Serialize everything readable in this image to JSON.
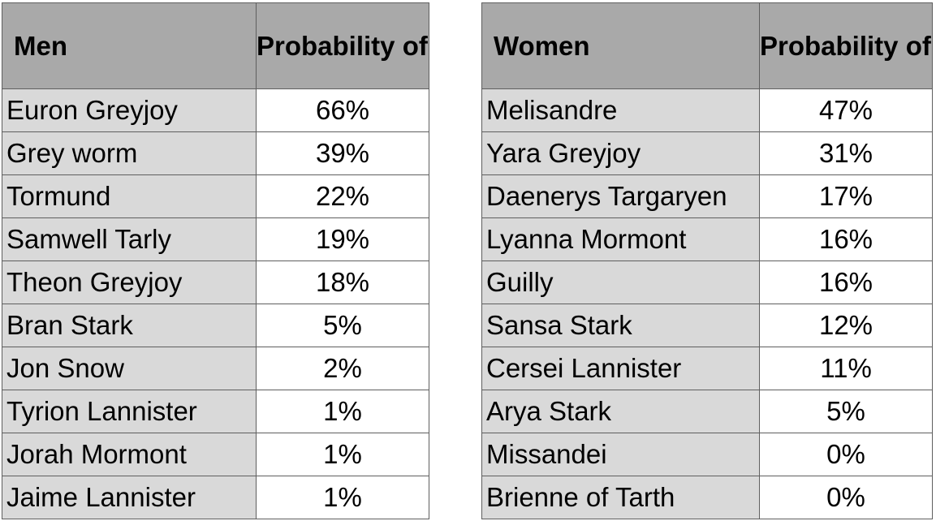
{
  "men_table": {
    "headers": {
      "name": "Men",
      "probability": "Probability of death"
    },
    "rows": [
      {
        "name": "Euron Greyjoy",
        "probability": "66%"
      },
      {
        "name": "Grey worm",
        "probability": "39%"
      },
      {
        "name": "Tormund",
        "probability": "22%"
      },
      {
        "name": "Samwell Tarly",
        "probability": "19%"
      },
      {
        "name": "Theon Greyjoy",
        "probability": "18%"
      },
      {
        "name": "Bran Stark",
        "probability": "5%"
      },
      {
        "name": "Jon Snow",
        "probability": "2%"
      },
      {
        "name": "Tyrion Lannister",
        "probability": "1%"
      },
      {
        "name": "Jorah Mormont",
        "probability": "1%"
      },
      {
        "name": "Jaime Lannister",
        "probability": "1%"
      }
    ]
  },
  "women_table": {
    "headers": {
      "name": "Women",
      "probability": "Probability of death"
    },
    "rows": [
      {
        "name": "Melisandre",
        "probability": "47%"
      },
      {
        "name": "Yara Greyjoy",
        "probability": "31%"
      },
      {
        "name": "Daenerys Targaryen",
        "probability": "17%"
      },
      {
        "name": "Lyanna Mormont",
        "probability": "16%"
      },
      {
        "name": "Guilly",
        "probability": "16%"
      },
      {
        "name": "Sansa Stark",
        "probability": "12%"
      },
      {
        "name": "Cersei Lannister",
        "probability": "11%"
      },
      {
        "name": "Arya Stark",
        "probability": "5%"
      },
      {
        "name": "Missandei",
        "probability": "0%"
      },
      {
        "name": "Brienne of Tarth",
        "probability": "0%"
      }
    ]
  }
}
